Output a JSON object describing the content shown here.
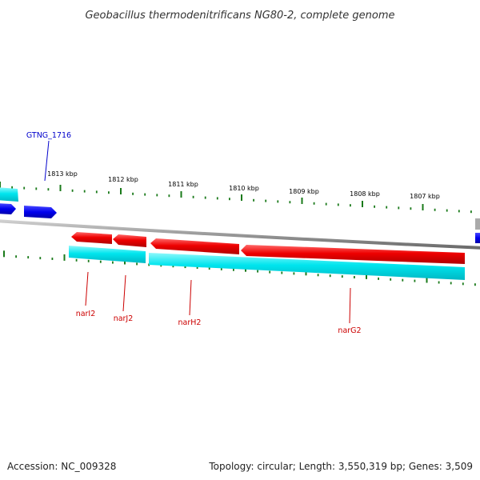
{
  "title": "Geobacillus thermodenitrificans NG80-2, complete genome",
  "accession": "Accession: NC_009328",
  "topology": "Topology: circular; Length: 3,550,319 bp; Genes: 3,509",
  "colors": {
    "forward_gene": "#0000ee",
    "reverse_gene": "#ee0000",
    "cds_track": "#00e5ee",
    "backbone": "#999999",
    "ticks": "#1a7a1a",
    "forward_label": "#0000cc",
    "reverse_label": "#cc0000"
  },
  "scale": {
    "tick_labels": [
      "1813 kbp",
      "1812 kbp",
      "1811 kbp",
      "1810 kbp",
      "1809 kbp",
      "1808 kbp",
      "1807 kbp"
    ]
  },
  "genes": [
    {
      "name": "GTNG_1716",
      "strand": "forward"
    },
    {
      "name": "narI2",
      "strand": "reverse"
    },
    {
      "name": "narJ2",
      "strand": "reverse"
    },
    {
      "name": "narH2",
      "strand": "reverse"
    },
    {
      "name": "narG2",
      "strand": "reverse"
    }
  ]
}
